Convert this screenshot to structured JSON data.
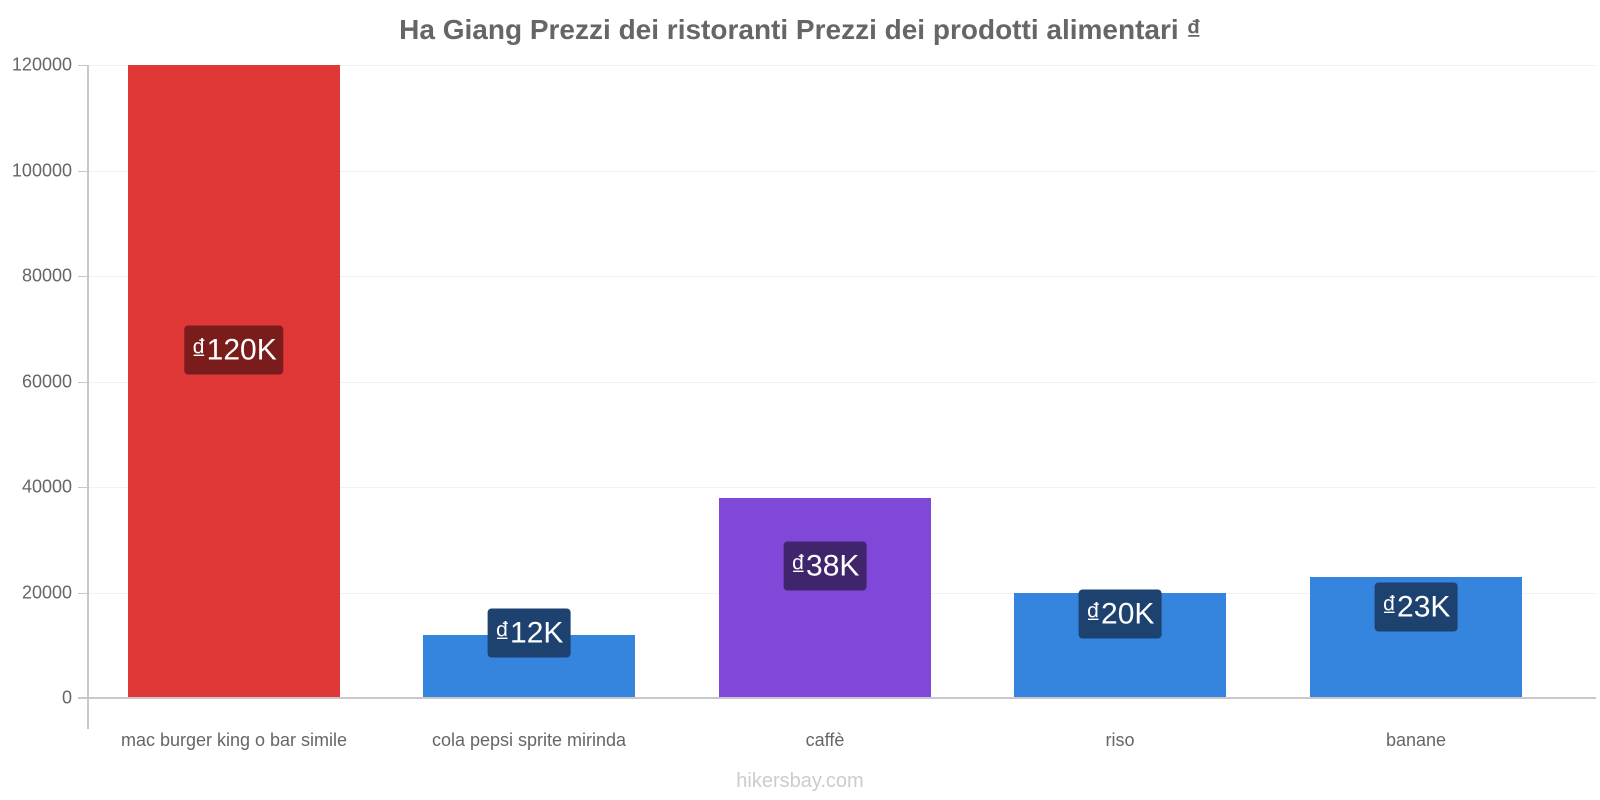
{
  "title": "Ha Giang Prezzi dei ristoranti Prezzi dei prodotti alimentari ₫",
  "watermark": "hikersbay.com",
  "y_axis": {
    "ticks": [
      "0",
      "20000",
      "40000",
      "60000",
      "80000",
      "100000",
      "120000"
    ]
  },
  "bars": [
    {
      "category": "mac burger king o bar simile",
      "label": "₫120K",
      "color": "#e03737",
      "label_bg": "#7a1c1c"
    },
    {
      "category": "cola pepsi sprite mirinda",
      "label": "₫12K",
      "color": "#3584de",
      "label_bg": "#1d4270"
    },
    {
      "category": "caffè",
      "label": "₫38K",
      "color": "#8048d8",
      "label_bg": "#40246c"
    },
    {
      "category": "riso",
      "label": "₫20K",
      "color": "#3584de",
      "label_bg": "#1d4270"
    },
    {
      "category": "banane",
      "label": "₫23K",
      "color": "#3584de",
      "label_bg": "#1d4270"
    }
  ],
  "chart_data": {
    "type": "bar",
    "title": "Ha Giang Prezzi dei ristoranti Prezzi dei prodotti alimentari ₫",
    "categories": [
      "mac burger king o bar simile",
      "cola pepsi sprite mirinda",
      "caffè",
      "riso",
      "banane"
    ],
    "values": [
      120000,
      12000,
      38000,
      20000,
      23000
    ],
    "data_labels": [
      "₫120K",
      "₫12K",
      "₫38K",
      "₫20K",
      "₫23K"
    ],
    "colors": [
      "#e03737",
      "#3584de",
      "#8048d8",
      "#3584de",
      "#3584de"
    ],
    "xlabel": "",
    "ylabel": "",
    "ylim": [
      0,
      120000
    ],
    "yticks": [
      0,
      20000,
      40000,
      60000,
      80000,
      100000,
      120000
    ],
    "grid": true,
    "legend": "none"
  }
}
